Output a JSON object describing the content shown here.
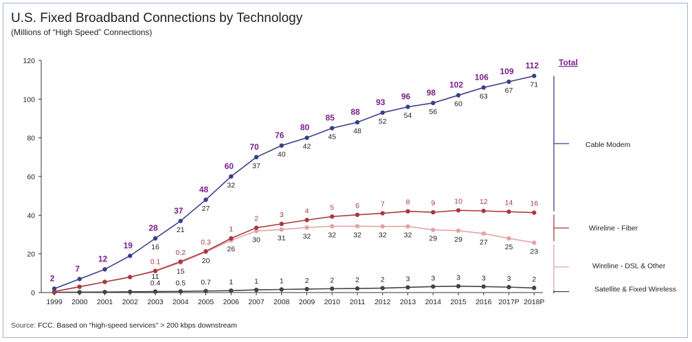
{
  "title": "U.S. Fixed Broadband Connections by Technology",
  "subtitle": "(Millions of “High Speed” Connections)",
  "source_prefix": "Source:",
  "source_text": "FCC. Based on “high-speed services” > 200 kbps downstream",
  "colors": {
    "cable": "#3b3f8a",
    "fiber": "#a83a3e",
    "dsl": "#e3a3a5",
    "satellite": "#444444",
    "total_label": "#7b1e8c",
    "grid": "#cfcfcf"
  },
  "chart_data": {
    "type": "line",
    "categories": [
      "1999",
      "2000",
      "2001",
      "2002",
      "2003",
      "2004",
      "2005",
      "2006",
      "2007",
      "2008",
      "2009",
      "2010",
      "2011",
      "2012",
      "2013",
      "2014",
      "2015",
      "2016",
      "2017P",
      "2018P"
    ],
    "ylim": [
      0,
      120
    ],
    "yticks": [
      0,
      20,
      40,
      60,
      80,
      100,
      120
    ],
    "grid": false,
    "total_header": "Total",
    "series": [
      {
        "name": "Cable Modem",
        "key": "cable",
        "cumulative": [
          2,
          7,
          12,
          19,
          28,
          37,
          48,
          60,
          70,
          76,
          80,
          85,
          88,
          93,
          96,
          98,
          102,
          106,
          109,
          112
        ],
        "labels": [
          "",
          "",
          "",
          "",
          "16",
          "21",
          "27",
          "32",
          "37",
          "40",
          "42",
          "45",
          "48",
          "52",
          "54",
          "56",
          "60",
          "63",
          "67",
          "71"
        ]
      },
      {
        "name": "Wireline - Fiber",
        "key": "fiber",
        "cumulative": [
          0.5,
          3,
          5.5,
          8,
          11.2,
          16,
          21.3,
          28,
          33.5,
          35.5,
          37.5,
          39.3,
          40.2,
          41,
          42,
          41.5,
          42.5,
          42.2,
          41.8,
          41.3
        ],
        "labels": [
          "",
          "",
          "",
          "",
          "0.1",
          "0.2",
          "0.3",
          "1",
          "2",
          "3",
          "4",
          "5",
          "6",
          "7",
          "8",
          "9",
          "10",
          "12",
          "14",
          "16"
        ]
      },
      {
        "name": "Wireline - DSL & Other",
        "key": "dsl",
        "cumulative": [
          0.5,
          3,
          5.5,
          8,
          11,
          15.5,
          21,
          27,
          31.8,
          32.6,
          33.6,
          34.3,
          34.3,
          34.2,
          34.2,
          32.4,
          32,
          30.5,
          28,
          25.8
        ],
        "labels": [
          "",
          "",
          "",
          "",
          "11",
          "15",
          "20",
          "26",
          "30",
          "31",
          "32",
          "32",
          "32",
          "32",
          "32",
          "29",
          "29",
          "27",
          "25",
          "23"
        ]
      },
      {
        "name": "Satellite & Fixed Wireless",
        "key": "satellite",
        "cumulative": [
          0.1,
          0.2,
          0.3,
          0.4,
          0.5,
          0.6,
          0.8,
          1,
          1.4,
          1.6,
          1.8,
          2,
          2.1,
          2.3,
          2.7,
          3.1,
          3.3,
          3.1,
          2.8,
          2.4
        ],
        "labels": [
          "",
          "",
          "",
          "",
          "0.4",
          "0.5",
          "0.7",
          "1",
          "1",
          "1",
          "2",
          "2",
          "2",
          "2",
          "3",
          "3",
          "3",
          "3",
          "3",
          "2"
        ]
      }
    ],
    "totals": [
      2,
      7,
      12,
      19,
      28,
      37,
      48,
      60,
      70,
      76,
      80,
      85,
      88,
      93,
      96,
      98,
      102,
      106,
      109,
      112
    ]
  }
}
